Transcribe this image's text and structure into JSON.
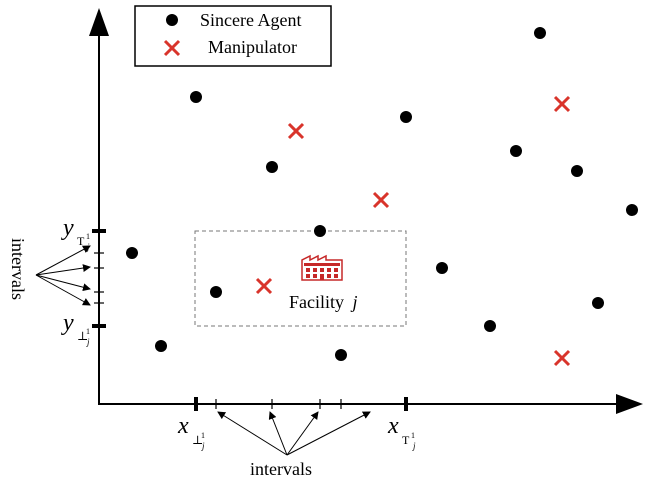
{
  "legend": {
    "sincere_label": "Sincere Agent",
    "manipulator_label": "Manipulator"
  },
  "facility": {
    "label": "Facility",
    "index": "j",
    "icon": "factory-icon",
    "icon_color": "#d32f2f"
  },
  "axis_labels": {
    "x_low": {
      "base": "x",
      "sub": "⊥",
      "sup": "1",
      "subsub": "j"
    },
    "x_high": {
      "base": "x",
      "sub": "T",
      "sup": "1",
      "subsub": "j"
    },
    "y_low": {
      "base": "y",
      "sub": "⊥",
      "sup": "1",
      "subsub": "j"
    },
    "y_high": {
      "base": "y",
      "sub": "T",
      "sup": "1",
      "subsub": "j"
    }
  },
  "intervals_labels": {
    "x": "intervals",
    "y": "intervals"
  },
  "colors": {
    "agent": "#000000",
    "manipulator": "#d9342b",
    "box_border": "#777777"
  }
}
